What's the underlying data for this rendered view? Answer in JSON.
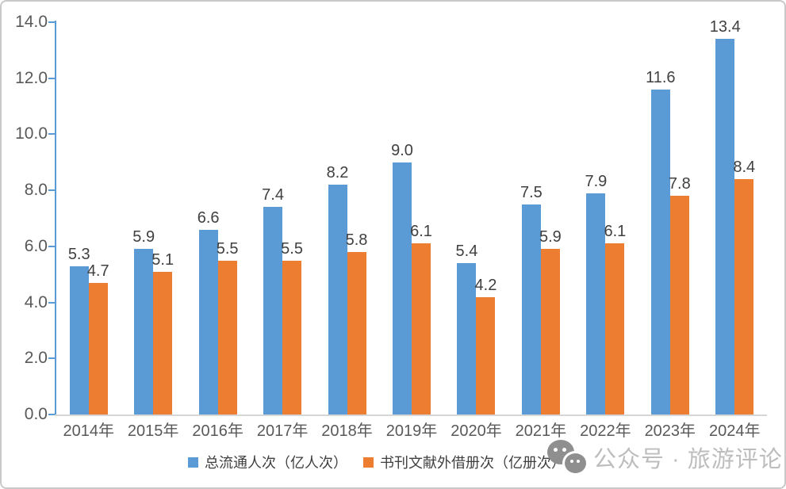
{
  "chart_data": {
    "type": "bar",
    "categories": [
      "2014年",
      "2015年",
      "2016年",
      "2017年",
      "2018年",
      "2019年",
      "2020年",
      "2021年",
      "2022年",
      "2023年",
      "2024年"
    ],
    "series": [
      {
        "name": "总流通人次（亿人次）",
        "color": "#5B9BD5",
        "values": [
          5.3,
          5.9,
          6.6,
          7.4,
          8.2,
          9.0,
          5.4,
          7.5,
          7.9,
          11.6,
          13.4
        ]
      },
      {
        "name": "书刊文献外借册次（亿册次）",
        "color": "#ED7D31",
        "values": [
          4.7,
          5.1,
          5.5,
          5.5,
          5.8,
          6.1,
          4.2,
          5.9,
          6.1,
          7.8,
          8.4
        ]
      }
    ],
    "title": "",
    "xlabel": "",
    "ylabel": "",
    "ylim": [
      0,
      14
    ],
    "ytick_step": 2,
    "ytick_labels": [
      "0.0",
      "2.0",
      "4.0",
      "6.0",
      "8.0",
      "10.0",
      "12.0",
      "14.0"
    ],
    "grid": false,
    "legend_position": "bottom",
    "data_labels": true,
    "label_decimals": 1
  },
  "watermark": {
    "icon": "wechat-icon",
    "text": "公众号 · 旅游评论"
  },
  "colors": {
    "y_axis_line": "#5B9BD5",
    "x_axis_line": "#D6D6D6",
    "tick_label": "#595959",
    "data_label": "#404040",
    "legend_text": "#404040",
    "watermark_text": "#BDBDBD",
    "frame_border": "#C9C9C9",
    "background": "#FFFFFF"
  }
}
